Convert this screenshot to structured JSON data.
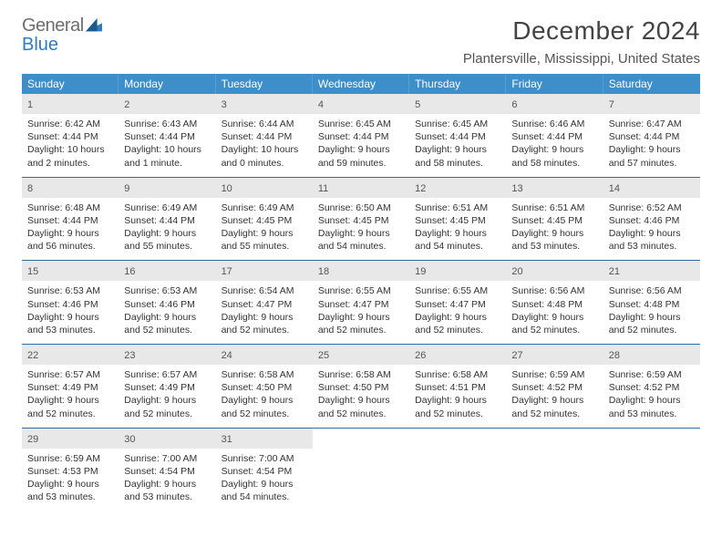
{
  "brand": {
    "word1": "General",
    "word2": "Blue"
  },
  "title": "December 2024",
  "location": "Plantersville, Mississippi, United States",
  "colors": {
    "header_bg": "#3d8ec9",
    "header_text": "#ffffff",
    "daynum_bg": "#e8e8e8",
    "week_border": "#2f6ea3",
    "text": "#333333",
    "logo_gray": "#6e6e6e",
    "logo_blue": "#2f7cc0"
  },
  "dow": [
    "Sunday",
    "Monday",
    "Tuesday",
    "Wednesday",
    "Thursday",
    "Friday",
    "Saturday"
  ],
  "weeks": [
    [
      {
        "n": "1",
        "sr": "Sunrise: 6:42 AM",
        "ss": "Sunset: 4:44 PM",
        "dl1": "Daylight: 10 hours",
        "dl2": "and 2 minutes."
      },
      {
        "n": "2",
        "sr": "Sunrise: 6:43 AM",
        "ss": "Sunset: 4:44 PM",
        "dl1": "Daylight: 10 hours",
        "dl2": "and 1 minute."
      },
      {
        "n": "3",
        "sr": "Sunrise: 6:44 AM",
        "ss": "Sunset: 4:44 PM",
        "dl1": "Daylight: 10 hours",
        "dl2": "and 0 minutes."
      },
      {
        "n": "4",
        "sr": "Sunrise: 6:45 AM",
        "ss": "Sunset: 4:44 PM",
        "dl1": "Daylight: 9 hours",
        "dl2": "and 59 minutes."
      },
      {
        "n": "5",
        "sr": "Sunrise: 6:45 AM",
        "ss": "Sunset: 4:44 PM",
        "dl1": "Daylight: 9 hours",
        "dl2": "and 58 minutes."
      },
      {
        "n": "6",
        "sr": "Sunrise: 6:46 AM",
        "ss": "Sunset: 4:44 PM",
        "dl1": "Daylight: 9 hours",
        "dl2": "and 58 minutes."
      },
      {
        "n": "7",
        "sr": "Sunrise: 6:47 AM",
        "ss": "Sunset: 4:44 PM",
        "dl1": "Daylight: 9 hours",
        "dl2": "and 57 minutes."
      }
    ],
    [
      {
        "n": "8",
        "sr": "Sunrise: 6:48 AM",
        "ss": "Sunset: 4:44 PM",
        "dl1": "Daylight: 9 hours",
        "dl2": "and 56 minutes."
      },
      {
        "n": "9",
        "sr": "Sunrise: 6:49 AM",
        "ss": "Sunset: 4:44 PM",
        "dl1": "Daylight: 9 hours",
        "dl2": "and 55 minutes."
      },
      {
        "n": "10",
        "sr": "Sunrise: 6:49 AM",
        "ss": "Sunset: 4:45 PM",
        "dl1": "Daylight: 9 hours",
        "dl2": "and 55 minutes."
      },
      {
        "n": "11",
        "sr": "Sunrise: 6:50 AM",
        "ss": "Sunset: 4:45 PM",
        "dl1": "Daylight: 9 hours",
        "dl2": "and 54 minutes."
      },
      {
        "n": "12",
        "sr": "Sunrise: 6:51 AM",
        "ss": "Sunset: 4:45 PM",
        "dl1": "Daylight: 9 hours",
        "dl2": "and 54 minutes."
      },
      {
        "n": "13",
        "sr": "Sunrise: 6:51 AM",
        "ss": "Sunset: 4:45 PM",
        "dl1": "Daylight: 9 hours",
        "dl2": "and 53 minutes."
      },
      {
        "n": "14",
        "sr": "Sunrise: 6:52 AM",
        "ss": "Sunset: 4:46 PM",
        "dl1": "Daylight: 9 hours",
        "dl2": "and 53 minutes."
      }
    ],
    [
      {
        "n": "15",
        "sr": "Sunrise: 6:53 AM",
        "ss": "Sunset: 4:46 PM",
        "dl1": "Daylight: 9 hours",
        "dl2": "and 53 minutes."
      },
      {
        "n": "16",
        "sr": "Sunrise: 6:53 AM",
        "ss": "Sunset: 4:46 PM",
        "dl1": "Daylight: 9 hours",
        "dl2": "and 52 minutes."
      },
      {
        "n": "17",
        "sr": "Sunrise: 6:54 AM",
        "ss": "Sunset: 4:47 PM",
        "dl1": "Daylight: 9 hours",
        "dl2": "and 52 minutes."
      },
      {
        "n": "18",
        "sr": "Sunrise: 6:55 AM",
        "ss": "Sunset: 4:47 PM",
        "dl1": "Daylight: 9 hours",
        "dl2": "and 52 minutes."
      },
      {
        "n": "19",
        "sr": "Sunrise: 6:55 AM",
        "ss": "Sunset: 4:47 PM",
        "dl1": "Daylight: 9 hours",
        "dl2": "and 52 minutes."
      },
      {
        "n": "20",
        "sr": "Sunrise: 6:56 AM",
        "ss": "Sunset: 4:48 PM",
        "dl1": "Daylight: 9 hours",
        "dl2": "and 52 minutes."
      },
      {
        "n": "21",
        "sr": "Sunrise: 6:56 AM",
        "ss": "Sunset: 4:48 PM",
        "dl1": "Daylight: 9 hours",
        "dl2": "and 52 minutes."
      }
    ],
    [
      {
        "n": "22",
        "sr": "Sunrise: 6:57 AM",
        "ss": "Sunset: 4:49 PM",
        "dl1": "Daylight: 9 hours",
        "dl2": "and 52 minutes."
      },
      {
        "n": "23",
        "sr": "Sunrise: 6:57 AM",
        "ss": "Sunset: 4:49 PM",
        "dl1": "Daylight: 9 hours",
        "dl2": "and 52 minutes."
      },
      {
        "n": "24",
        "sr": "Sunrise: 6:58 AM",
        "ss": "Sunset: 4:50 PM",
        "dl1": "Daylight: 9 hours",
        "dl2": "and 52 minutes."
      },
      {
        "n": "25",
        "sr": "Sunrise: 6:58 AM",
        "ss": "Sunset: 4:50 PM",
        "dl1": "Daylight: 9 hours",
        "dl2": "and 52 minutes."
      },
      {
        "n": "26",
        "sr": "Sunrise: 6:58 AM",
        "ss": "Sunset: 4:51 PM",
        "dl1": "Daylight: 9 hours",
        "dl2": "and 52 minutes."
      },
      {
        "n": "27",
        "sr": "Sunrise: 6:59 AM",
        "ss": "Sunset: 4:52 PM",
        "dl1": "Daylight: 9 hours",
        "dl2": "and 52 minutes."
      },
      {
        "n": "28",
        "sr": "Sunrise: 6:59 AM",
        "ss": "Sunset: 4:52 PM",
        "dl1": "Daylight: 9 hours",
        "dl2": "and 53 minutes."
      }
    ],
    [
      {
        "n": "29",
        "sr": "Sunrise: 6:59 AM",
        "ss": "Sunset: 4:53 PM",
        "dl1": "Daylight: 9 hours",
        "dl2": "and 53 minutes."
      },
      {
        "n": "30",
        "sr": "Sunrise: 7:00 AM",
        "ss": "Sunset: 4:54 PM",
        "dl1": "Daylight: 9 hours",
        "dl2": "and 53 minutes."
      },
      {
        "n": "31",
        "sr": "Sunrise: 7:00 AM",
        "ss": "Sunset: 4:54 PM",
        "dl1": "Daylight: 9 hours",
        "dl2": "and 54 minutes."
      },
      null,
      null,
      null,
      null
    ]
  ]
}
